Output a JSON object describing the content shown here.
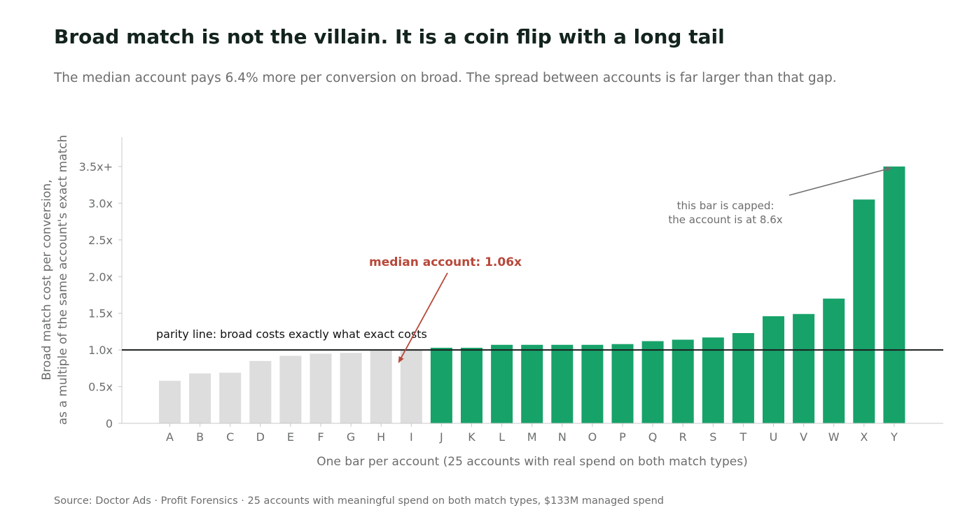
{
  "header": {
    "title": "Broad match is not the villain. It is a coin flip with a long tail",
    "subtitle": "The median account pays 6.4% more per conversion on broad. The spread between accounts is far larger than that gap."
  },
  "footer": {
    "source": "Source: Doctor Ads · Profit Forensics · 25 accounts with meaningful spend on both match types, $133M managed spend"
  },
  "chart_data": {
    "type": "bar",
    "categories": [
      "A",
      "B",
      "C",
      "D",
      "E",
      "F",
      "G",
      "H",
      "I",
      "J",
      "K",
      "L",
      "M",
      "N",
      "O",
      "P",
      "Q",
      "R",
      "S",
      "T",
      "U",
      "V",
      "W",
      "X",
      "Y"
    ],
    "values": [
      0.58,
      0.68,
      0.69,
      0.85,
      0.92,
      0.95,
      0.96,
      0.99,
      1.0,
      1.03,
      1.03,
      1.07,
      1.07,
      1.07,
      1.07,
      1.08,
      1.12,
      1.14,
      1.17,
      1.23,
      1.46,
      1.49,
      1.7,
      3.05,
      3.5
    ],
    "xlabel": "One bar per account (25 accounts with real spend on both match types)",
    "ylabel_lines": [
      "Broad match cost per conversion,",
      "as a multiple of the same account's exact match"
    ],
    "ylim": [
      0,
      3.9
    ],
    "yticks": [
      {
        "value": 0,
        "label": "0"
      },
      {
        "value": 0.5,
        "label": "0.5x"
      },
      {
        "value": 1.0,
        "label": "1.0x"
      },
      {
        "value": 1.5,
        "label": "1.5x"
      },
      {
        "value": 2.0,
        "label": "2.0x"
      },
      {
        "value": 2.5,
        "label": "2.5x"
      },
      {
        "value": 3.0,
        "label": "3.0x"
      },
      {
        "value": 3.5,
        "label": "3.5x+"
      }
    ],
    "reference_line": {
      "value": 1.0,
      "label": "parity line: broad costs exactly what exact costs"
    },
    "annotations": {
      "median": {
        "label": "median account: 1.06x",
        "category": "I",
        "value": 1.06
      },
      "capped": {
        "lines": [
          "this bar is capped:",
          "the account is at 8.6x"
        ],
        "category": "Y",
        "value": 3.5
      }
    },
    "colors": {
      "below_parity": "#dcdddc",
      "above_parity": "#17a26a",
      "parity_line": "#1b1f1d",
      "median_annotation": "#b8483a",
      "cap_annotation": "#707070",
      "axis": "#c8c8c8"
    },
    "grid": false,
    "legend": "none"
  }
}
